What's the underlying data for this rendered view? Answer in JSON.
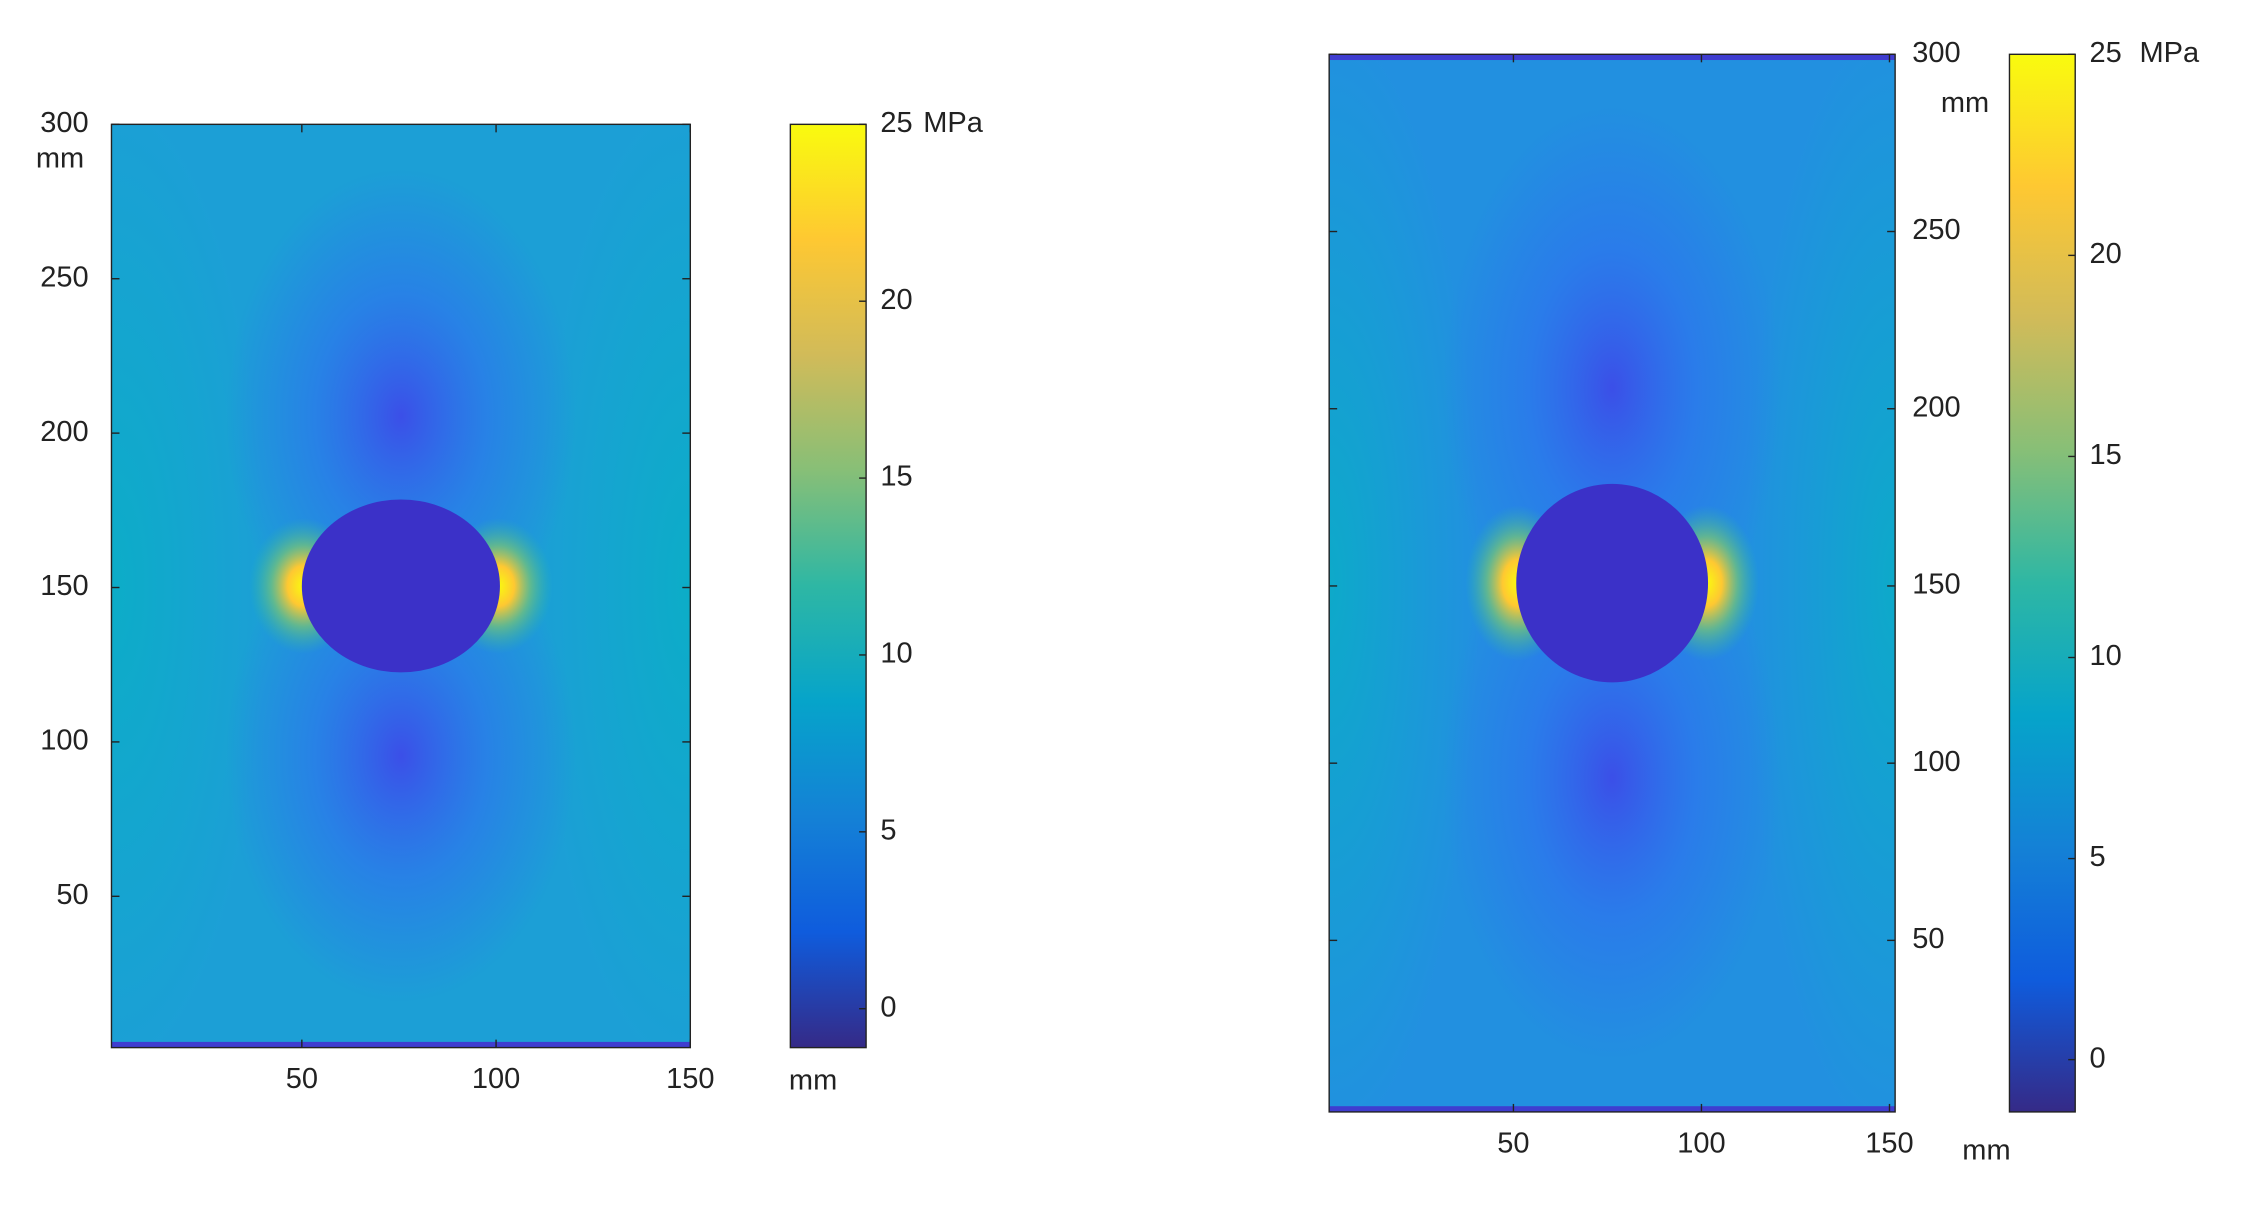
{
  "chart_data": [
    {
      "type": "heatmap",
      "x_label": "mm",
      "y_label": "mm",
      "xlim": [
        1,
        150
      ],
      "ylim": [
        1,
        300
      ],
      "xticks": [
        50,
        100,
        150
      ],
      "yticks": [
        50,
        100,
        150,
        200,
        250,
        300
      ],
      "y_axis_side": "left",
      "colorbar": {
        "label": "MPa",
        "clim": [
          -1.1,
          25
        ],
        "ticks": [
          0,
          5,
          10,
          15,
          20,
          25
        ],
        "colormap": [
          "#352a87",
          "#0f5cdd",
          "#1481d6",
          "#06a4ca",
          "#2eb7a4",
          "#87bf77",
          "#d1bb59",
          "#fec832",
          "#f9fb0e"
        ]
      }
    },
    {
      "type": "heatmap",
      "x_label": "mm",
      "y_label": "mm",
      "xlim": [
        1,
        151.5
      ],
      "ylim": [
        1.6,
        300
      ],
      "xticks": [
        50,
        100,
        150
      ],
      "yticks": [
        50,
        100,
        150,
        200,
        250,
        300
      ],
      "y_axis_side": "right",
      "colorbar": {
        "label": "MPa",
        "clim": [
          -1.3,
          25
        ],
        "ticks": [
          0,
          5,
          10,
          15,
          20,
          25
        ],
        "colormap": [
          "#352a87",
          "#0f5cdd",
          "#1481d6",
          "#06a4ca",
          "#2eb7a4",
          "#87bf77",
          "#d1bb59",
          "#fec832",
          "#f9fb0e"
        ]
      }
    }
  ]
}
